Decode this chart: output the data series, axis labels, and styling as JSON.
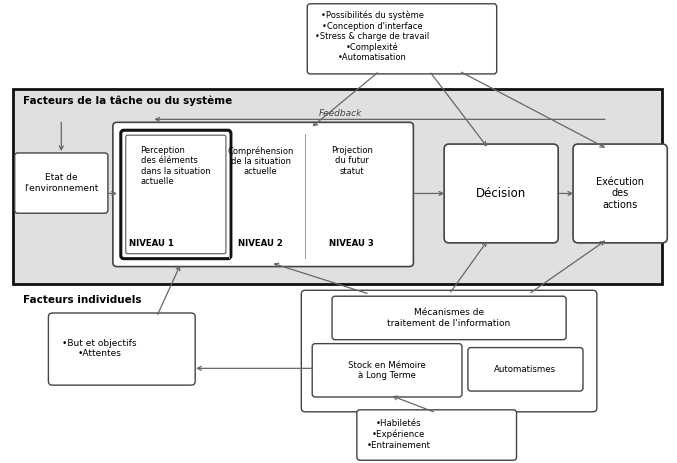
{
  "fig_width": 6.77,
  "fig_height": 4.63,
  "dpi": 100,
  "bg_color": "#ffffff",
  "gray_bg": "#e0e0e0",
  "box_fc": "#ffffff",
  "box_ec": "#444444",
  "label_tache": "Facteurs de la tâche ou du système",
  "label_individuel": "Facteurs individuels",
  "label_feedback": "Feedback",
  "label_etat": "Etat de\nl'environnement",
  "box_systeme_text": "•Possibilités du système\n•Conception d'interface\n•Stress & charge de travail\n•Complexité\n•Automatisation",
  "box_niveau1_text": "Perception\ndes éléments\ndans la situation\nactuelle",
  "box_niveau1_label": "NIVEAU 1",
  "box_niveau2_text": "Compréhension\nde la situation\nactuelle",
  "box_niveau2_label": "NIVEAU 2",
  "box_niveau3_text": "Projection\ndu futur\nstatut",
  "box_niveau3_label": "NIVEAU 3",
  "box_decision_text": "Décision",
  "box_execution_text": "Exécution\ndes\nactions",
  "box_buts_text": "•But et objectifs\n•Attentes",
  "box_mecanismes_text": "Mécanismes de\ntraitement de l'information",
  "box_stock_text": "Stock en Mémoire\nà Long Terme",
  "box_automatismes_text": "Automatismes",
  "box_habiletes_text": "•Habiletés\n•Expérience\n•Entrainement",
  "arrow_color": "#666666"
}
